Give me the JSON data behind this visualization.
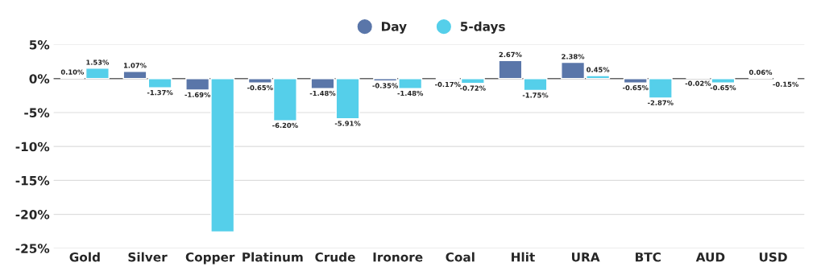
{
  "chart_data": {
    "type": "bar",
    "categories": [
      "Gold",
      "Silver",
      "Copper",
      "Platinum",
      "Crude",
      "Ironore",
      "Coal",
      "Hlit",
      "URA",
      "BTC",
      "AUD",
      "USD"
    ],
    "series": [
      {
        "name": "Day",
        "color": "#5a76a9",
        "values": [
          0.1,
          1.07,
          -1.69,
          -0.65,
          -1.48,
          -0.35,
          -0.17,
          2.67,
          2.38,
          -0.65,
          -0.02,
          0.06
        ],
        "value_labels": [
          "0.10%",
          "1.07%",
          "-1.69%",
          "-0.65%",
          "-1.48%",
          "-0.35%",
          "-0.17%",
          "2.67%",
          "2.38%",
          "-0.65%",
          "-0.02%",
          "0.06%"
        ]
      },
      {
        "name": "5-days",
        "color": "#55cfea",
        "values": [
          1.53,
          -1.37,
          -22.6,
          -6.2,
          -5.91,
          -1.48,
          -0.72,
          -1.75,
          0.45,
          -2.87,
          -0.65,
          -0.15
        ],
        "value_labels": [
          "1.53%",
          "-1.37%",
          null,
          "-6.20%",
          "-5.91%",
          "-1.48%",
          "-0.72%",
          "-1.75%",
          "0.45%",
          "-2.87%",
          "-0.65%",
          "-0.15%"
        ]
      }
    ],
    "ylim": [
      -25,
      5
    ],
    "yticks": [
      {
        "value": 5,
        "label": "5%"
      },
      {
        "value": 0,
        "label": "0%"
      },
      {
        "value": -5,
        "label": "-5%"
      },
      {
        "value": -10,
        "label": "-10%"
      },
      {
        "value": -15,
        "label": "-15%"
      },
      {
        "value": -20,
        "label": "-20%"
      },
      {
        "value": -25,
        "label": "-25%"
      }
    ],
    "grid": "y",
    "legend": "top"
  }
}
